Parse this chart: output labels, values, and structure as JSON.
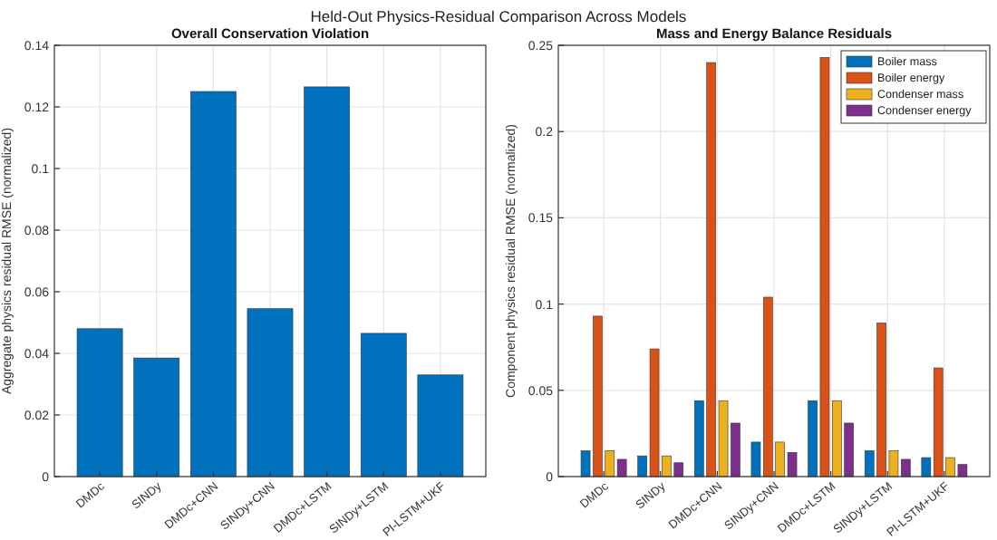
{
  "chart_data": [
    {
      "type": "bar",
      "title": "Overall Conservation Violation",
      "ylabel": "Aggregate physics residual RMSE (normalized)",
      "annotations": [
        "Held-Out Physics-Residual Comparison Across Models"
      ],
      "categories": [
        "DMDc",
        "SINDy",
        "DMDc+CNN",
        "SINDy+CNN",
        "DMDc+LSTM",
        "SINDy+LSTM",
        "PI-LSTM+UKF"
      ],
      "values": [
        0.048,
        0.0385,
        0.125,
        0.0545,
        0.1265,
        0.0465,
        0.033
      ],
      "color": "#0072bd",
      "ylim": [
        0,
        0.14
      ],
      "yticks": [
        {
          "value": 0,
          "label": "0"
        },
        {
          "value": 0.02,
          "label": "0.02"
        },
        {
          "value": 0.04,
          "label": "0.04"
        },
        {
          "value": 0.06,
          "label": "0.06"
        },
        {
          "value": 0.08,
          "label": "0.08"
        },
        {
          "value": 0.1,
          "label": "0.1"
        },
        {
          "value": 0.12,
          "label": "0.12"
        },
        {
          "value": 0.14,
          "label": "0.14"
        }
      ],
      "grid": true
    },
    {
      "type": "bar",
      "title": "Mass and Energy Balance Residuals",
      "ylabel": "Component physics residual RMSE (normalized)",
      "categories": [
        "DMDc",
        "SINDy",
        "DMDc+CNN",
        "SINDy+CNN",
        "DMDc+LSTM",
        "SINDy+LSTM",
        "PI-LSTM+UKF"
      ],
      "series": [
        {
          "name": "Boiler mass",
          "color": "#0072bd",
          "values": [
            0.015,
            0.012,
            0.044,
            0.02,
            0.044,
            0.015,
            0.011
          ]
        },
        {
          "name": "Boiler energy",
          "color": "#d95319",
          "values": [
            0.093,
            0.074,
            0.24,
            0.104,
            0.243,
            0.089,
            0.063
          ]
        },
        {
          "name": "Condenser mass",
          "color": "#edb120",
          "values": [
            0.015,
            0.012,
            0.044,
            0.02,
            0.044,
            0.015,
            0.011
          ]
        },
        {
          "name": "Condenser energy",
          "color": "#7e2f8e",
          "values": [
            0.01,
            0.008,
            0.031,
            0.014,
            0.031,
            0.01,
            0.007
          ]
        }
      ],
      "ylim": [
        0,
        0.25
      ],
      "yticks": [
        {
          "value": 0,
          "label": "0"
        },
        {
          "value": 0.05,
          "label": "0.05"
        },
        {
          "value": 0.1,
          "label": "0.1"
        },
        {
          "value": 0.15,
          "label": "0.15"
        },
        {
          "value": 0.2,
          "label": "0.2"
        },
        {
          "value": 0.25,
          "label": "0.25"
        }
      ],
      "grid": true,
      "legend": "top right"
    }
  ]
}
